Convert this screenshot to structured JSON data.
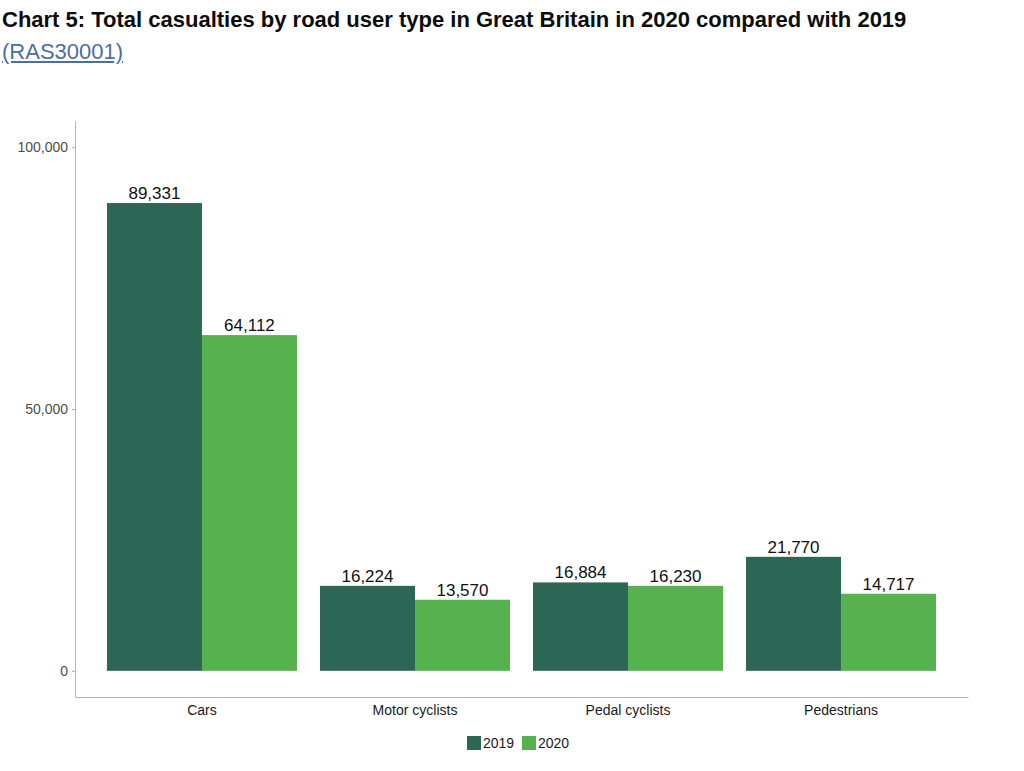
{
  "chart_data": {
    "type": "bar",
    "title": "Chart 5: Total casualties by road user type in Great Britain in 2020 compared with 2019",
    "title_link": "(RAS30001)",
    "categories": [
      "Cars",
      "Motor cyclists",
      "Pedal cyclists",
      "Pedestrians"
    ],
    "series": [
      {
        "name": "2019",
        "color": "#2b6754",
        "values": [
          89331,
          16224,
          16884,
          21770
        ],
        "value_labels": [
          "89,331",
          "16,224",
          "16,884",
          "21,770"
        ]
      },
      {
        "name": "2020",
        "color": "#55b24f",
        "values": [
          64112,
          13570,
          16230,
          14717
        ],
        "value_labels": [
          "64,112",
          "13,570",
          "16,230",
          "14,717"
        ]
      }
    ],
    "ylim": [
      -5000,
      105000
    ],
    "yticks": [
      0,
      {
        "value": 50000,
        "label": "50,000"
      },
      {
        "value": 100000,
        "label": "100,000"
      }
    ],
    "grid": false,
    "legend": "bottom",
    "data_labels": true
  }
}
